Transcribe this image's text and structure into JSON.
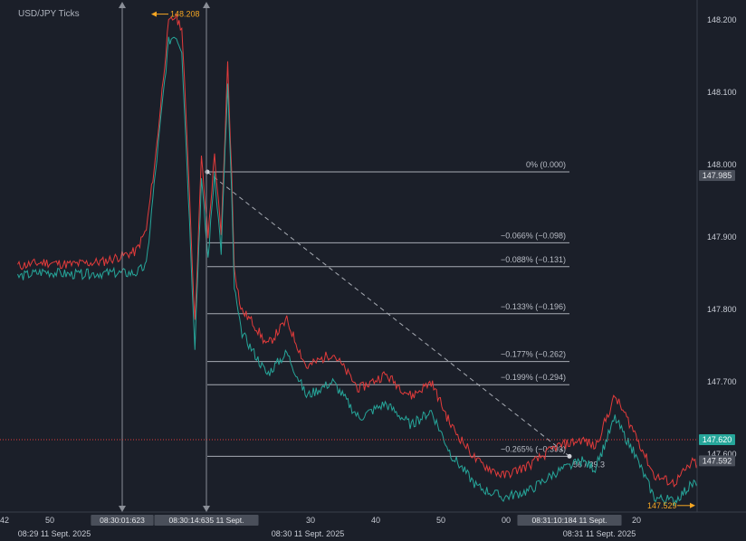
{
  "header": {
    "title": "USD/JPY Ticks"
  },
  "colors": {
    "background": "#1b1f29",
    "ask": "#e23b3b",
    "bid": "#26a69a",
    "annotation": "#f5a623",
    "fib_line": "#a7abb3",
    "trend_line": "#a7abb3",
    "current_price_bg": "#26a69a"
  },
  "chart_data": {
    "type": "line",
    "title": "USD/JPY Ticks",
    "xlabel": "",
    "ylabel": "",
    "ylim": [
      147.52,
      148.225
    ],
    "y_ticks": [
      "148.200",
      "148.100",
      "148.000",
      "147.900",
      "147.800",
      "147.700",
      "147.600"
    ],
    "x_ticks": [
      "42",
      "50",
      "30",
      "40",
      "50",
      "00",
      "20"
    ],
    "date_labels": [
      "08:29 11 Sept. 2025",
      "08:30 11 Sept. 2025",
      "08:31 11 Sept. 2025"
    ],
    "grid": false,
    "series": [
      {
        "name": "",
        "role": "ask",
        "color": "#e23b3b",
        "x": [
          "08:29:42",
          "08:29:46",
          "08:29:50",
          "08:29:55",
          "08:30:00",
          "08:30:01.6",
          "08:30:03",
          "08:30:05",
          "08:30:06",
          "08:30:07",
          "08:30:08",
          "08:30:09",
          "08:30:10",
          "08:30:11",
          "08:30:12",
          "08:30:13",
          "08:30:14",
          "08:30:14.6",
          "08:30:15",
          "08:30:16",
          "08:30:18",
          "08:30:20",
          "08:30:23",
          "08:30:26",
          "08:30:30",
          "08:30:34",
          "08:30:38",
          "08:30:42",
          "08:30:45",
          "08:30:48",
          "08:30:52",
          "08:30:56",
          "08:31:00",
          "08:31:04",
          "08:31:08",
          "08:31:10",
          "08:31:13",
          "08:31:16",
          "08:31:19",
          "08:31:22",
          "08:31:25",
          "08:31:28",
          "08:31:30"
        ],
        "values": [
          147.86,
          147.865,
          147.862,
          147.866,
          147.88,
          147.91,
          148.01,
          148.195,
          148.205,
          148.19,
          148.0,
          147.78,
          148.01,
          147.9,
          148.015,
          147.9,
          148.14,
          147.99,
          147.86,
          147.8,
          147.78,
          147.75,
          147.785,
          147.72,
          147.74,
          147.69,
          147.71,
          147.68,
          147.7,
          147.64,
          147.59,
          147.57,
          147.585,
          147.61,
          147.62,
          147.61,
          147.68,
          147.63,
          147.57,
          147.56,
          147.59,
          147.56,
          147.54
        ]
      },
      {
        "name": "",
        "role": "bid",
        "color": "#26a69a",
        "x": [
          "08:29:42",
          "08:29:46",
          "08:29:50",
          "08:29:55",
          "08:30:00",
          "08:30:01.6",
          "08:30:03",
          "08:30:05",
          "08:30:06",
          "08:30:07",
          "08:30:08",
          "08:30:09",
          "08:30:10",
          "08:30:11",
          "08:30:12",
          "08:30:13",
          "08:30:14",
          "08:30:14.6",
          "08:30:15",
          "08:30:16",
          "08:30:18",
          "08:30:20",
          "08:30:23",
          "08:30:26",
          "08:30:30",
          "08:30:34",
          "08:30:38",
          "08:30:42",
          "08:30:45",
          "08:30:48",
          "08:30:52",
          "08:30:56",
          "08:31:00",
          "08:31:04",
          "08:31:08",
          "08:31:10",
          "08:31:13",
          "08:31:16",
          "08:31:19",
          "08:31:22",
          "08:31:25",
          "08:31:28",
          "08:31:30"
        ],
        "values": [
          147.845,
          147.852,
          147.848,
          147.85,
          147.85,
          147.86,
          147.99,
          148.17,
          148.18,
          148.16,
          147.96,
          147.75,
          147.98,
          147.87,
          147.99,
          147.88,
          148.11,
          147.96,
          147.83,
          147.77,
          147.74,
          147.71,
          147.74,
          147.68,
          147.7,
          147.65,
          147.67,
          147.64,
          147.66,
          147.6,
          147.555,
          147.54,
          147.55,
          147.575,
          147.59,
          147.58,
          147.65,
          147.6,
          147.54,
          147.535,
          147.56,
          147.533,
          147.529
        ]
      }
    ],
    "vertical_markers": [
      "08:30:01:623",
      "08:30:14:635 11 Sept.",
      "08:31:10:184 11 Sept."
    ],
    "fib_levels": [
      {
        "label": "0% (0.000)",
        "price": 147.99
      },
      {
        "label": "−0.066% (−0.098)",
        "price": 147.892
      },
      {
        "label": "−0.088% (−0.131)",
        "price": 147.859
      },
      {
        "label": "−0.133% (−0.196)",
        "price": 147.794
      },
      {
        "label": "−0.177% (−0.262)",
        "price": 147.728
      },
      {
        "label": "−0.199% (−0.294)",
        "price": 147.696
      },
      {
        "label": "−0.265% (−0.393)",
        "price": 147.597
      }
    ],
    "trend_line": {
      "from_price": 147.99,
      "to_price": 147.597,
      "label": "56 / 39.3"
    },
    "price_labels": {
      "high": "148.208",
      "low": "147.529",
      "fib_start": "147.985",
      "current": "147.620",
      "secondary": "147.592"
    }
  }
}
